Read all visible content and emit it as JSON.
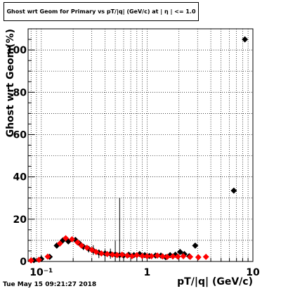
{
  "title": "Ghost wrt Geom for Primary vs pT/|q| (GeV/c) at | η | <= 1.0",
  "timestamp": "Tue May 15 09:21:27 2018",
  "chart_data": {
    "type": "scatter",
    "title": "Ghost wrt Geom for Primary vs pT/|q| (GeV/c) at | η | <= 1.0",
    "xlabel": "pT/|q| (GeV/c)",
    "ylabel": "Ghost wrt Geom(%)",
    "x_scale": "log",
    "xlim": [
      0.075,
      10
    ],
    "ylim": [
      0,
      110
    ],
    "grid": true,
    "x_ticks": [
      {
        "value": 0.1,
        "label": "10⁻¹"
      },
      {
        "value": 1,
        "label": "1"
      },
      {
        "value": 10,
        "label": "10"
      }
    ],
    "y_ticks": [
      {
        "value": 0,
        "label": "0"
      },
      {
        "value": 20,
        "label": "20"
      },
      {
        "value": 40,
        "label": "40"
      },
      {
        "value": 60,
        "label": "60"
      },
      {
        "value": 80,
        "label": "80"
      },
      {
        "value": 100,
        "label": "100"
      }
    ],
    "series": [
      {
        "color": "#000000",
        "points": [
          [
            0.085,
            0.6
          ],
          [
            0.1,
            1.2
          ],
          [
            0.12,
            2.2
          ],
          [
            0.14,
            7.5
          ],
          [
            0.16,
            10.0
          ],
          [
            0.18,
            9.5
          ],
          [
            0.21,
            10.2
          ],
          [
            0.23,
            8.5
          ],
          [
            0.25,
            7.0
          ],
          [
            0.28,
            6.0
          ],
          [
            0.31,
            5.2
          ],
          [
            0.35,
            4.2
          ],
          [
            0.4,
            3.8
          ],
          [
            0.45,
            3.6
          ],
          [
            0.5,
            3.3
          ],
          [
            0.55,
            3.0
          ],
          [
            0.6,
            2.8
          ],
          [
            0.67,
            3.2
          ],
          [
            0.75,
            3.0
          ],
          [
            0.85,
            3.5
          ],
          [
            0.95,
            3.0
          ],
          [
            1.05,
            2.6
          ],
          [
            1.2,
            2.8
          ],
          [
            1.35,
            2.8
          ],
          [
            1.5,
            2.0
          ],
          [
            1.65,
            3.0
          ],
          [
            1.85,
            3.2
          ],
          [
            2.05,
            4.5
          ],
          [
            2.25,
            3.5
          ],
          [
            2.5,
            2.5
          ],
          [
            2.85,
            7.5
          ],
          [
            6.6,
            33.5
          ],
          [
            8.4,
            105.0
          ]
        ],
        "errors": [
          [
            0.42,
            0.5
          ],
          [
            0.48,
            0.5
          ],
          [
            0.55,
            0.5
          ],
          [
            0.64,
            1.5
          ],
          [
            0.82,
            1.0
          ],
          [
            0.95,
            0.8
          ],
          [
            1.25,
            0.8
          ],
          [
            1.35,
            0.6
          ],
          [
            1.6,
            0.6
          ],
          [
            1.75,
            0.6
          ],
          [
            2.1,
            2.5
          ],
          [
            2.6,
            1.5
          ],
          [
            2.6,
            2.0
          ],
          [
            2.3,
            2.5
          ],
          [
            4.0,
            6.5
          ],
          [
            27.0,
            27.0
          ],
          [
            0,
            0
          ]
        ]
      },
      {
        "color": "#ff0000",
        "points": [
          [
            0.08,
            0.5
          ],
          [
            0.095,
            0.8
          ],
          [
            0.115,
            2.3
          ],
          [
            0.15,
            8.5
          ],
          [
            0.17,
            11.0
          ],
          [
            0.195,
            10.5
          ],
          [
            0.22,
            9.0
          ],
          [
            0.24,
            7.5
          ],
          [
            0.27,
            6.5
          ],
          [
            0.3,
            5.5
          ],
          [
            0.33,
            4.5
          ],
          [
            0.37,
            3.8
          ],
          [
            0.42,
            3.5
          ],
          [
            0.47,
            3.2
          ],
          [
            0.52,
            3.0
          ],
          [
            0.58,
            3.2
          ],
          [
            0.65,
            2.8
          ],
          [
            0.72,
            2.5
          ],
          [
            0.8,
            3.0
          ],
          [
            0.9,
            2.6
          ],
          [
            1.0,
            2.5
          ],
          [
            1.1,
            2.5
          ],
          [
            1.25,
            2.8
          ],
          [
            1.4,
            2.4
          ],
          [
            1.55,
            2.2
          ],
          [
            1.75,
            2.4
          ],
          [
            1.95,
            2.3
          ],
          [
            2.2,
            2.5
          ],
          [
            2.55,
            2.2
          ],
          [
            3.05,
            2.0
          ],
          [
            3.6,
            2.2
          ]
        ]
      }
    ]
  }
}
